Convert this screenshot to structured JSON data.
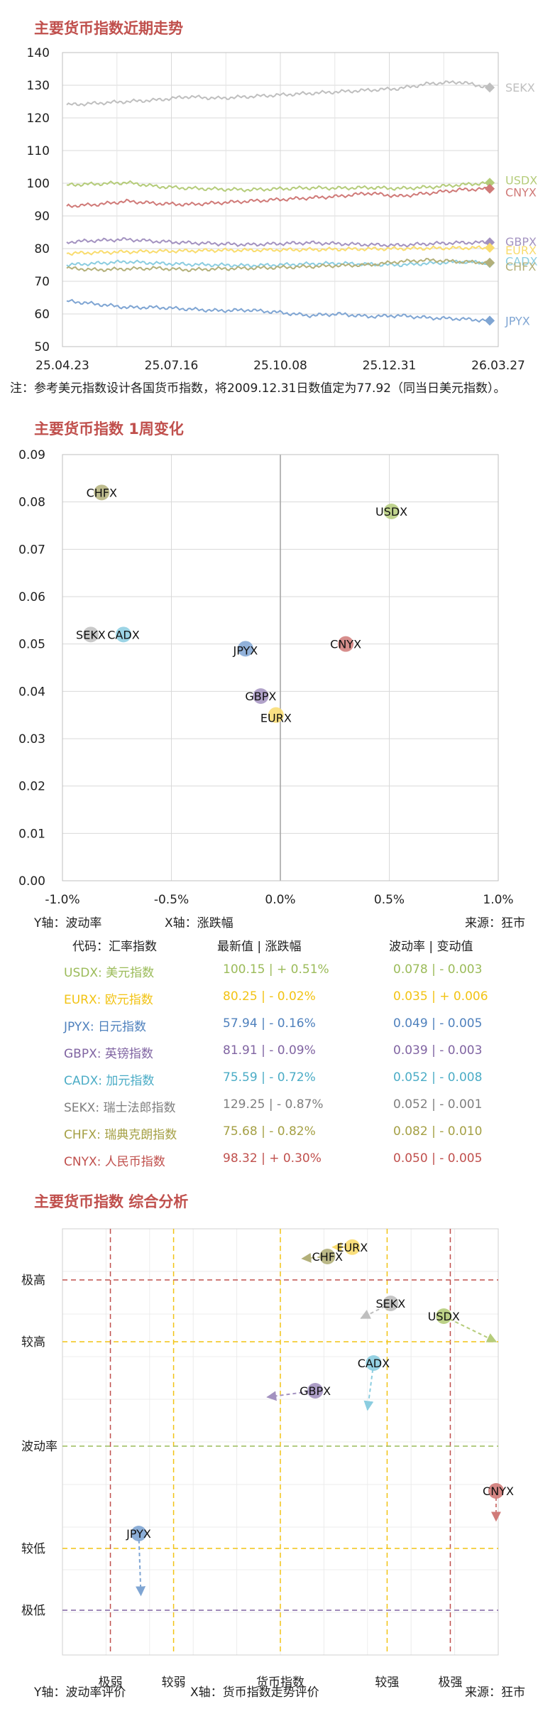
{
  "charts": {
    "line": {
      "title": "主要货币指数近期走势",
      "note": "注：参考美元指数设计各国货币指数，将2009.12.31日数值定为77.92（同当日美元指数）。"
    },
    "scatter": {
      "title": "主要货币指数 1周变化",
      "ylabel_note": "Y轴：波动率",
      "xlabel_note": "X轴：涨跌幅",
      "source": "来源：狂市"
    },
    "analysis": {
      "title": "主要货币指数 综合分析",
      "ylabel_note": "Y轴：波动率评价",
      "xlabel_note": "X轴：货币指数走势评价",
      "source": "来源：狂市"
    }
  },
  "table": {
    "header": {
      "code": "代码：汇率指数",
      "price": "最新值 | 涨跌幅",
      "vol": "波动率 | 变动值"
    },
    "rows": [
      {
        "code": "USDX: 美元指数",
        "price": "100.15 |  + 0.51%",
        "vol": "0.078 |  - 0.003",
        "color": "#9bbb59"
      },
      {
        "code": "EURX: 欧元指数",
        "price": "80.25 |  - 0.02%",
        "vol": "0.035 |  + 0.006",
        "color": "#f2c314"
      },
      {
        "code": "JPYX: 日元指数",
        "price": "57.94 |  - 0.16%",
        "vol": "0.049 |  - 0.005",
        "color": "#4f81bd"
      },
      {
        "code": "GBPX: 英镑指数",
        "price": "81.91 |  - 0.09%",
        "vol": "0.039 |  - 0.003",
        "color": "#8064a2"
      },
      {
        "code": "CADX: 加元指数",
        "price": "75.59 |  - 0.72%",
        "vol": "0.052 |  - 0.008",
        "color": "#4bacc6"
      },
      {
        "code": "SEKX: 瑞士法郎指数",
        "price": "129.25 |  - 0.87%",
        "vol": "0.052 |  - 0.001",
        "color": "#7f7f7f"
      },
      {
        "code": "CHFX: 瑞典克朗指数",
        "price": "75.68 |  - 0.82%",
        "vol": "0.082 |  - 0.010",
        "color": "#a5a045"
      },
      {
        "code": "CNYX: 人民币指数",
        "price": "98.32 |  + 0.30%",
        "vol": "0.050 |  - 0.005",
        "color": "#c0504d"
      }
    ]
  },
  "chart_data": [
    {
      "type": "line",
      "title": "主要货币指数近期走势",
      "x_ticks": [
        "25.04.23",
        "25.07.16",
        "25.10.08",
        "25.12.31",
        "26.03.27"
      ],
      "ylim": [
        50,
        140
      ],
      "y_ticks": [
        50,
        60,
        70,
        80,
        90,
        100,
        110,
        120,
        130,
        140
      ],
      "grid": true,
      "series": [
        {
          "name": "SEKX",
          "color": "#bfbfbf",
          "values": [
            124,
            124.5,
            125,
            125.5,
            126.5,
            126,
            126.5,
            127,
            127.5,
            128,
            128.5,
            129,
            130.5,
            131,
            129.3
          ]
        },
        {
          "name": "USDX",
          "color": "#b5cc7a",
          "values": [
            99.5,
            99.8,
            100.2,
            99,
            98.5,
            98.2,
            98,
            98.3,
            98.6,
            98.5,
            98.7,
            98.4,
            98.8,
            99.5,
            100.15
          ]
        },
        {
          "name": "CNYX",
          "color": "#d07a78",
          "values": [
            93,
            93.5,
            94.5,
            93.8,
            93.5,
            94,
            94.5,
            95,
            95.5,
            96,
            97,
            96,
            97,
            98,
            98.32
          ]
        },
        {
          "name": "GBPX",
          "color": "#a392c0",
          "values": [
            82,
            82.5,
            82.8,
            82.2,
            81.8,
            81.5,
            81.2,
            81.5,
            81.8,
            81.5,
            81.2,
            81,
            81.5,
            81.8,
            81.91
          ]
        },
        {
          "name": "EURX",
          "color": "#f9dc6e",
          "values": [
            78.5,
            78.8,
            79,
            79.2,
            79.3,
            79.5,
            79.5,
            79.6,
            79.7,
            79.8,
            79.9,
            80,
            80.1,
            80.2,
            80.25
          ]
        },
        {
          "name": "CADX",
          "color": "#8bcde0",
          "values": [
            75,
            75.5,
            76,
            75.5,
            75.2,
            75,
            74.8,
            75,
            75.3,
            75.5,
            75.2,
            75,
            75.5,
            76,
            75.59
          ]
        },
        {
          "name": "CHFX",
          "color": "#b3b07a",
          "values": [
            74,
            73.5,
            73.8,
            74,
            73.5,
            73.8,
            74,
            74.2,
            74.5,
            74.8,
            75,
            76,
            76.5,
            76,
            75.68
          ]
        },
        {
          "name": "JPYX",
          "color": "#7fa5d3",
          "values": [
            64,
            63,
            62,
            62,
            61.5,
            61,
            61.2,
            60.5,
            59.5,
            60,
            59.2,
            59.5,
            58.8,
            58.5,
            57.94
          ]
        }
      ]
    },
    {
      "type": "scatter",
      "title": "主要货币指数 1周变化",
      "xlim": [
        -1.0,
        1.0
      ],
      "ylim": [
        0,
        0.09
      ],
      "x_ticks": [
        "-1.0%",
        "-0.5%",
        "0.0%",
        "0.5%",
        "1.0%"
      ],
      "y_ticks": [
        "0.00",
        "0.01",
        "0.02",
        "0.03",
        "0.04",
        "0.05",
        "0.06",
        "0.07",
        "0.08",
        "0.09"
      ],
      "points": [
        {
          "name": "CHFX",
          "x": -0.82,
          "y": 0.082,
          "color": "#b3b07a"
        },
        {
          "name": "USDX",
          "x": 0.51,
          "y": 0.078,
          "color": "#b5cc7a"
        },
        {
          "name": "SEKX",
          "x": -0.87,
          "y": 0.052,
          "color": "#bfbfbf"
        },
        {
          "name": "CADX",
          "x": -0.72,
          "y": 0.052,
          "color": "#8bcde0"
        },
        {
          "name": "JPYX",
          "x": -0.16,
          "y": 0.049,
          "color": "#7fa5d3"
        },
        {
          "name": "CNYX",
          "x": 0.3,
          "y": 0.05,
          "color": "#d07a78"
        },
        {
          "name": "GBPX",
          "x": -0.09,
          "y": 0.039,
          "color": "#a392c0"
        },
        {
          "name": "EURX",
          "x": -0.02,
          "y": 0.035,
          "color": "#f9dc6e"
        }
      ]
    },
    {
      "type": "scatter",
      "title": "主要货币指数 综合分析",
      "xlim": [
        0,
        100
      ],
      "ylim": [
        0,
        100
      ],
      "x_ticks": [
        {
          "label": "极弱",
          "at": 11
        },
        {
          "label": "较弱",
          "at": 25.5
        },
        {
          "label": "货币指数",
          "at": 50
        },
        {
          "label": "较强",
          "at": 74.5
        },
        {
          "label": "极强",
          "at": 89
        }
      ],
      "y_ticks": [
        {
          "label": "极高",
          "at": 88
        },
        {
          "label": "较高",
          "at": 73.5
        },
        {
          "label": "波动率",
          "at": 49
        },
        {
          "label": "较低",
          "at": 25
        },
        {
          "label": "极低",
          "at": 10.5
        }
      ],
      "v_lines": [
        {
          "at": 11,
          "color": "#c0504d"
        },
        {
          "at": 25.5,
          "color": "#f2c314"
        },
        {
          "at": 50,
          "color": "#f2c314"
        },
        {
          "at": 74.5,
          "color": "#f2c314"
        },
        {
          "at": 89,
          "color": "#c0504d"
        }
      ],
      "h_lines": [
        {
          "at": 88,
          "color": "#c0504d"
        },
        {
          "at": 73.5,
          "color": "#f2c314"
        },
        {
          "at": 49,
          "color": "#9bbb59"
        },
        {
          "at": 25,
          "color": "#f2c314"
        },
        {
          "at": 10.5,
          "color": "#8064a2"
        }
      ],
      "points": [
        {
          "name": "EURX",
          "x": 66.5,
          "y": 95.7,
          "color": "#f9dc6e",
          "to": [
            62,
            95.7
          ]
        },
        {
          "name": "CHFX",
          "x": 60.8,
          "y": 93.5,
          "color": "#b3b07a",
          "to": [
            55,
            93
          ]
        },
        {
          "name": "SEKX",
          "x": 75.3,
          "y": 82.5,
          "color": "#bfbfbf",
          "to": [
            68.5,
            79
          ]
        },
        {
          "name": "USDX",
          "x": 87.5,
          "y": 79.5,
          "color": "#b5cc7a",
          "to": [
            99.5,
            73.5
          ]
        },
        {
          "name": "CADX",
          "x": 71.4,
          "y": 68.5,
          "color": "#8bcde0",
          "to": [
            70,
            57.5
          ]
        },
        {
          "name": "GBPX",
          "x": 58,
          "y": 62,
          "color": "#a392c0",
          "to": [
            47,
            60.5
          ]
        },
        {
          "name": "CNYX",
          "x": 99.5,
          "y": 38.5,
          "color": "#d07a78",
          "to": [
            99.5,
            31.5
          ]
        },
        {
          "name": "JPYX",
          "x": 17.5,
          "y": 28.5,
          "color": "#7fa5d3",
          "to": [
            18,
            14
          ]
        }
      ]
    }
  ]
}
